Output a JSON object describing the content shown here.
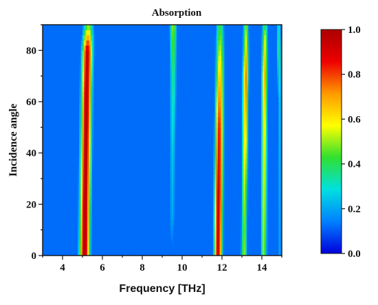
{
  "chart_data": {
    "type": "heatmap",
    "title": "Absorption",
    "xlabel": "Frequency [THz]",
    "ylabel": "Incidence angle",
    "xlim": [
      3,
      15
    ],
    "ylim": [
      0,
      90
    ],
    "x_ticks": [
      4,
      6,
      8,
      10,
      12,
      14
    ],
    "y_ticks": [
      0,
      20,
      40,
      60,
      80
    ],
    "colorbar": {
      "range": [
        0.0,
        1.0
      ],
      "ticks": [
        "0.0",
        "0.2",
        "0.4",
        "0.6",
        "0.8",
        "1.0"
      ],
      "colors": [
        "#0000dd",
        "#0080ff",
        "#00e0e0",
        "#30e030",
        "#ffff00",
        "#ff9900",
        "#ee0000",
        "#aa0000"
      ]
    },
    "background_level": 0.12,
    "bands": [
      {
        "center_freq_by_angle": [
          [
            0,
            5.1
          ],
          [
            30,
            5.15
          ],
          [
            60,
            5.2
          ],
          [
            80,
            5.25
          ],
          [
            90,
            5.3
          ]
        ],
        "peak_absorption_by_angle": [
          [
            0,
            0.98
          ],
          [
            30,
            0.97
          ],
          [
            60,
            0.97
          ],
          [
            80,
            0.95
          ],
          [
            90,
            0.45
          ]
        ],
        "width_thz": 0.18
      },
      {
        "center_freq_by_angle": [
          [
            10,
            9.5
          ],
          [
            40,
            9.52
          ],
          [
            70,
            9.55
          ],
          [
            90,
            9.55
          ]
        ],
        "peak_absorption_by_angle": [
          [
            0,
            0.1
          ],
          [
            15,
            0.2
          ],
          [
            40,
            0.25
          ],
          [
            70,
            0.35
          ],
          [
            85,
            0.45
          ],
          [
            90,
            0.5
          ]
        ],
        "width_thz": 0.12
      },
      {
        "center_freq_by_angle": [
          [
            0,
            11.8
          ],
          [
            40,
            11.85
          ],
          [
            80,
            11.9
          ],
          [
            90,
            11.9
          ]
        ],
        "peak_absorption_by_angle": [
          [
            0,
            0.95
          ],
          [
            25,
            0.95
          ],
          [
            50,
            0.85
          ],
          [
            75,
            0.6
          ],
          [
            90,
            0.4
          ]
        ],
        "width_thz": 0.14
      },
      {
        "center_freq_by_angle": [
          [
            0,
            13.1
          ],
          [
            40,
            13.15
          ],
          [
            80,
            13.2
          ],
          [
            90,
            13.2
          ]
        ],
        "peak_absorption_by_angle": [
          [
            0,
            0.5
          ],
          [
            10,
            0.45
          ],
          [
            40,
            0.6
          ],
          [
            70,
            0.75
          ],
          [
            85,
            0.55
          ],
          [
            90,
            0.45
          ]
        ],
        "width_thz": 0.1
      },
      {
        "center_freq_by_angle": [
          [
            0,
            14.1
          ],
          [
            40,
            14.12
          ],
          [
            80,
            14.15
          ],
          [
            90,
            14.15
          ]
        ],
        "peak_absorption_by_angle": [
          [
            0,
            0.5
          ],
          [
            20,
            0.55
          ],
          [
            50,
            0.6
          ],
          [
            70,
            0.7
          ],
          [
            85,
            0.55
          ],
          [
            90,
            0.4
          ]
        ],
        "width_thz": 0.1
      },
      {
        "center_freq_by_angle": [
          [
            60,
            14.9
          ],
          [
            90,
            14.85
          ]
        ],
        "peak_absorption_by_angle": [
          [
            0,
            0.2
          ],
          [
            60,
            0.25
          ],
          [
            80,
            0.4
          ],
          [
            90,
            0.3
          ]
        ],
        "width_thz": 0.08
      }
    ]
  }
}
